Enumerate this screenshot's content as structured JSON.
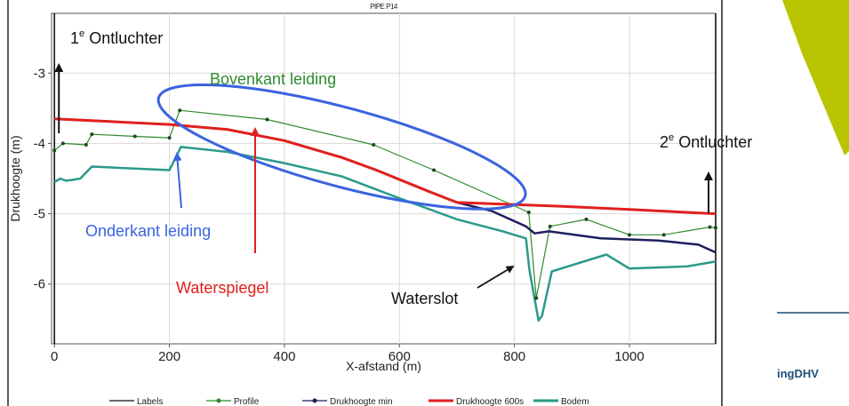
{
  "brand": {
    "text": "ingDHV",
    "accent_color": "#b9c400",
    "rule_color": "#1f4e79"
  },
  "chart_data": {
    "type": "line",
    "title": "PIPE P14",
    "xlabel": "X-afstand (m)",
    "ylabel": "Drukhoogte (m)",
    "xlim": [
      -5,
      1150
    ],
    "ylim": [
      -6.85,
      -2.15
    ],
    "xticks": [
      0,
      200,
      400,
      600,
      800,
      1000
    ],
    "yticks": [
      -6,
      -5,
      -4,
      -3
    ],
    "grid": true,
    "legend_position": "bottom",
    "legend": [
      {
        "label": "Labels",
        "color": "#111111",
        "marker": "none"
      },
      {
        "label": "Profile",
        "color": "#2f8a2f",
        "marker": "dot"
      },
      {
        "label": "Drukhoogte min",
        "color": "#1e1e5e",
        "marker": "dot"
      },
      {
        "label": "Drukhoogte 600s",
        "color": "#e0201e",
        "marker": "none"
      },
      {
        "label": "Bodem",
        "color": "#2a9a8a",
        "marker": "none"
      }
    ],
    "series": [
      {
        "name": "Profile",
        "color": "#2f8a2f",
        "width": 1.2,
        "markers": true,
        "x": [
          0,
          15,
          55,
          65,
          140,
          200,
          218,
          370,
          555,
          660,
          825,
          838,
          862,
          925,
          1000,
          1060,
          1140,
          1150
        ],
        "y": [
          -4.1,
          -4.0,
          -4.02,
          -3.87,
          -3.9,
          -3.92,
          -3.53,
          -3.66,
          -4.02,
          -4.38,
          -4.98,
          -6.2,
          -5.18,
          -5.08,
          -5.3,
          -5.3,
          -5.19,
          -5.2
        ]
      },
      {
        "name": "Drukhoogte min",
        "color": "#1e1e5e",
        "width": 2.5,
        "markers": false,
        "x": [
          0,
          100,
          200,
          300,
          400,
          500,
          560,
          650,
          700,
          760,
          820,
          835,
          860,
          950,
          1050,
          1120,
          1150
        ],
        "y": [
          -3.65,
          -3.69,
          -3.73,
          -3.8,
          -3.96,
          -4.2,
          -4.38,
          -4.68,
          -4.84,
          -4.96,
          -5.18,
          -5.28,
          -5.25,
          -5.35,
          -5.38,
          -5.44,
          -5.55
        ]
      },
      {
        "name": "Drukhoogte 600s",
        "color": "#e0201e",
        "width": 3,
        "markers": false,
        "x": [
          0,
          100,
          200,
          300,
          400,
          500,
          560,
          650,
          700,
          800,
          900,
          1000,
          1150
        ],
        "y": [
          -3.65,
          -3.69,
          -3.73,
          -3.8,
          -3.96,
          -4.2,
          -4.38,
          -4.68,
          -4.84,
          -4.87,
          -4.9,
          -4.94,
          -5.0
        ]
      },
      {
        "name": "Bodem",
        "color": "#2a9a8a",
        "width": 2.5,
        "markers": false,
        "x": [
          0,
          10,
          20,
          30,
          45,
          65,
          200,
          220,
          300,
          400,
          500,
          600,
          700,
          780,
          820,
          826,
          842,
          848,
          865,
          960,
          1000,
          1100,
          1150
        ],
        "y": [
          -4.55,
          -4.5,
          -4.53,
          -4.52,
          -4.5,
          -4.33,
          -4.38,
          -4.05,
          -4.12,
          -4.28,
          -4.47,
          -4.78,
          -5.08,
          -5.25,
          -5.35,
          -5.8,
          -6.52,
          -6.45,
          -5.82,
          -5.58,
          -5.78,
          -5.75,
          -5.68
        ]
      }
    ],
    "vertical_lines": [
      {
        "name": "Labels",
        "x": 0,
        "y": [
          -2.15,
          -6.85
        ],
        "color": "#111111"
      },
      {
        "name": "Labels",
        "x": 1150,
        "y": [
          -2.15,
          -6.85
        ],
        "color": "#111111"
      }
    ],
    "annotations": {
      "ontluchter1": {
        "base": "1",
        "sup": "e",
        "rest": " Ontluchter",
        "color": "#111111"
      },
      "ontluchter2": {
        "base": "2",
        "sup": "e",
        "rest": " Ontluchter",
        "color": "#111111"
      },
      "bovenkant": {
        "text": "Bovenkant leiding",
        "color": "#2f8a2f"
      },
      "onderkant": {
        "text": "Onderkant leiding",
        "color": "#3b63e0"
      },
      "waterspiegel": {
        "text": "Waterspiegel",
        "color": "#e0201e"
      },
      "waterslot": {
        "text": "Waterslot",
        "color": "#111111"
      },
      "ellipse": {
        "cx": 500,
        "cy": -4.05,
        "rx_units": 330,
        "ry_units": 0.56,
        "rotation_deg": 15,
        "color": "#3b63e0"
      }
    }
  }
}
